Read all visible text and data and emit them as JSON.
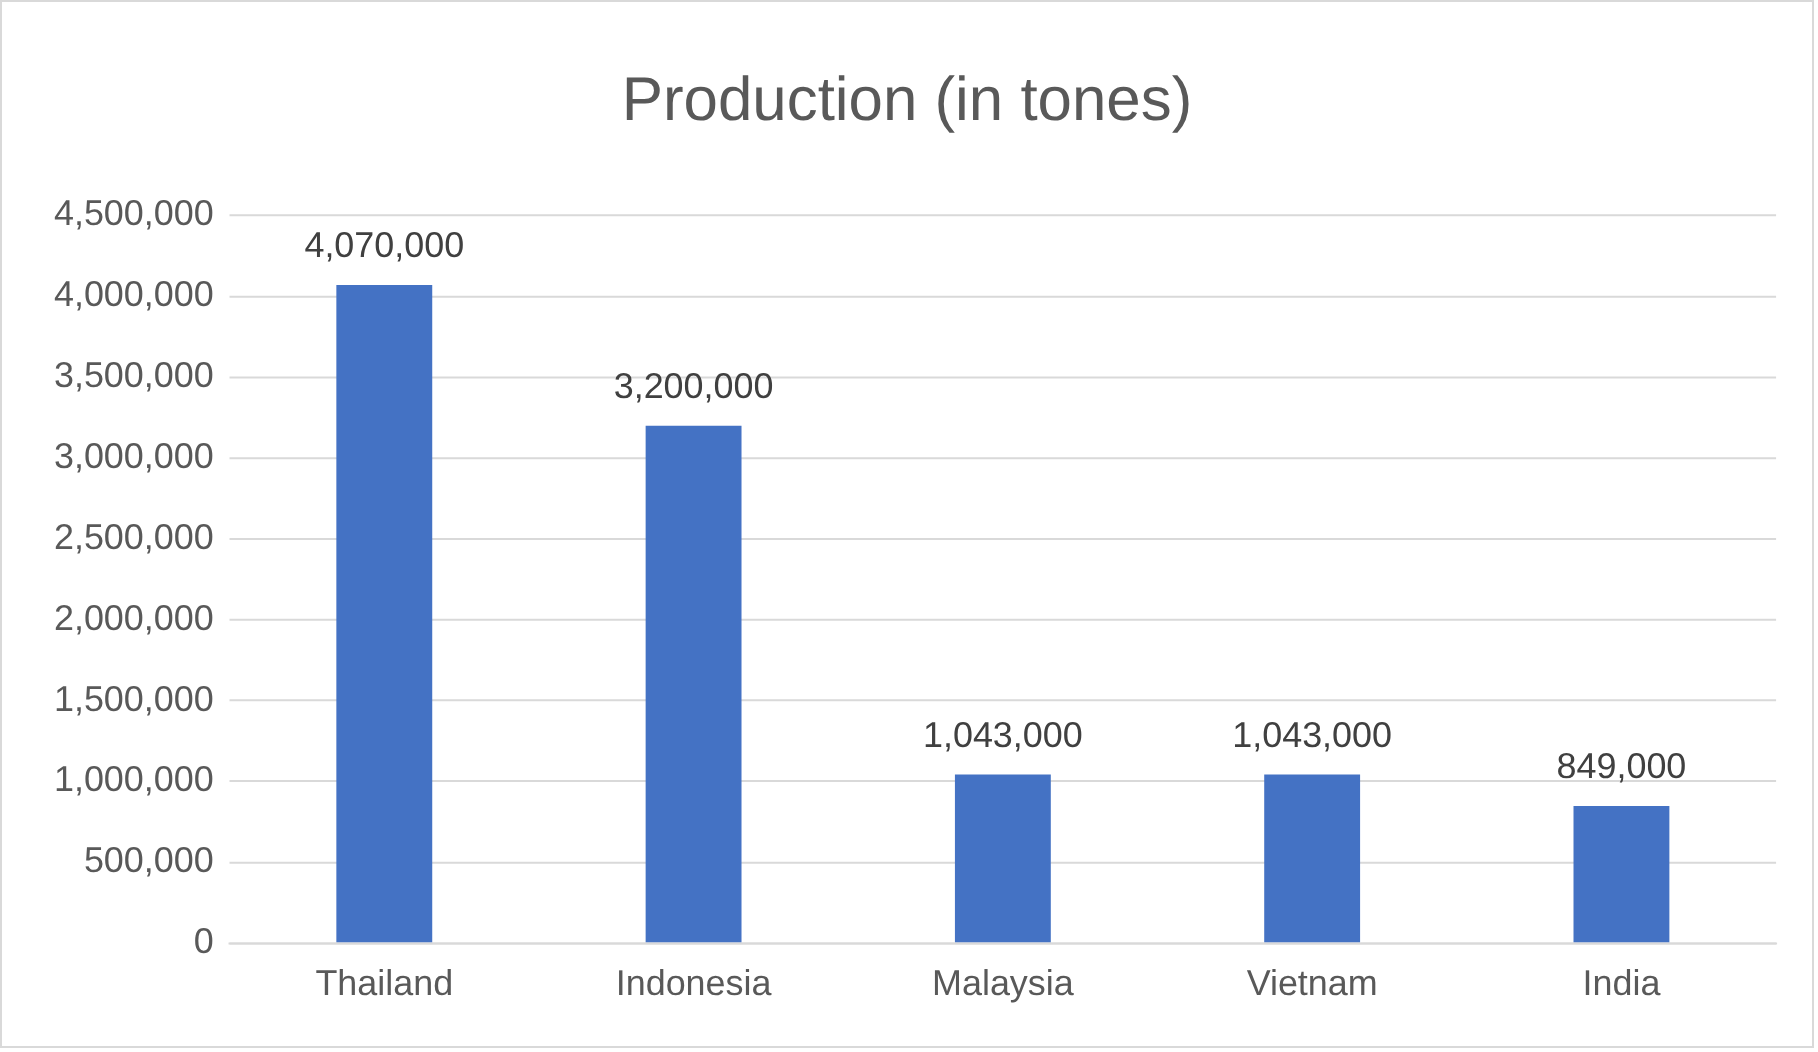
{
  "chart_data": {
    "type": "bar",
    "title": "Production (in tones)",
    "categories": [
      "Thailand",
      "Indonesia",
      "Malaysia",
      "Vietnam",
      "India"
    ],
    "values": [
      4070000,
      3200000,
      1043000,
      1043000,
      849000
    ],
    "value_labels": [
      "4,070,000",
      "3,200,000",
      "1,043,000",
      "1,043,000",
      "849,000"
    ],
    "color": "#4472c4",
    "ylim": [
      0,
      4500000
    ],
    "yticks": [
      0,
      {
        "value": 500000,
        "label": "500,000"
      },
      {
        "value": 1000000,
        "label": "1,000,000"
      },
      {
        "value": 1500000,
        "label": "1,500,000"
      },
      {
        "value": 2000000,
        "label": "2,000,000"
      },
      {
        "value": 2500000,
        "label": "2,500,000"
      },
      {
        "value": 3000000,
        "label": "3,000,000"
      },
      {
        "value": 3500000,
        "label": "3,500,000"
      },
      {
        "value": 4000000,
        "label": "4,000,000"
      },
      {
        "value": 4500000,
        "label": "4,500,000"
      }
    ],
    "grid": "y",
    "legend": false
  }
}
